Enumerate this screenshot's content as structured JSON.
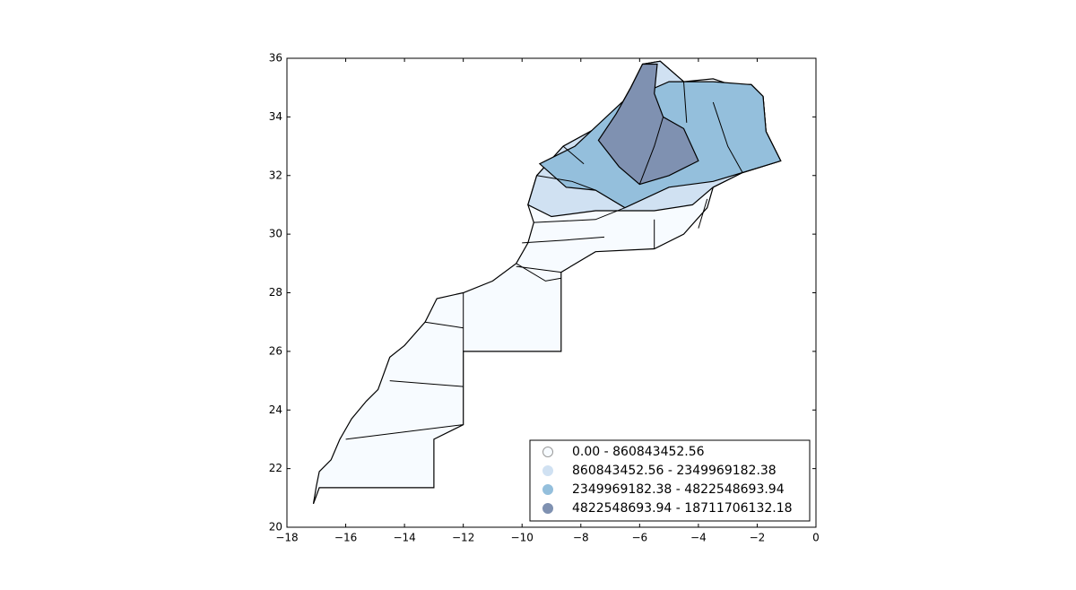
{
  "chart_data": {
    "type": "choropleth",
    "xlim": [
      -18,
      0
    ],
    "xticks": [
      {
        "value": -18,
        "label": "−18"
      },
      {
        "value": -16,
        "label": "−16"
      },
      {
        "value": -14,
        "label": "−14"
      },
      {
        "value": -12,
        "label": "−12"
      },
      {
        "value": -10,
        "label": "−10"
      },
      {
        "value": -8,
        "label": "−8"
      },
      {
        "value": -6,
        "label": "−6"
      },
      {
        "value": -4,
        "label": "−4"
      },
      {
        "value": -2,
        "label": "−2"
      },
      0
    ],
    "ylim": [
      20,
      36
    ],
    "yticks": [
      20,
      22,
      24,
      26,
      28,
      30,
      32,
      34,
      36
    ],
    "legend": "lower right",
    "classes": [
      {
        "label": "0.00 - 860843452.56",
        "color": "#f7fbff"
      },
      {
        "label": "860843452.56 - 2349969182.38",
        "color": "#d0e1f2"
      },
      {
        "label": "2349969182.38 - 4822548693.94",
        "color": "#94bfdc"
      },
      {
        "label": "4822548693.94 - 18711706132.18",
        "color": "#7f91b1"
      }
    ]
  }
}
